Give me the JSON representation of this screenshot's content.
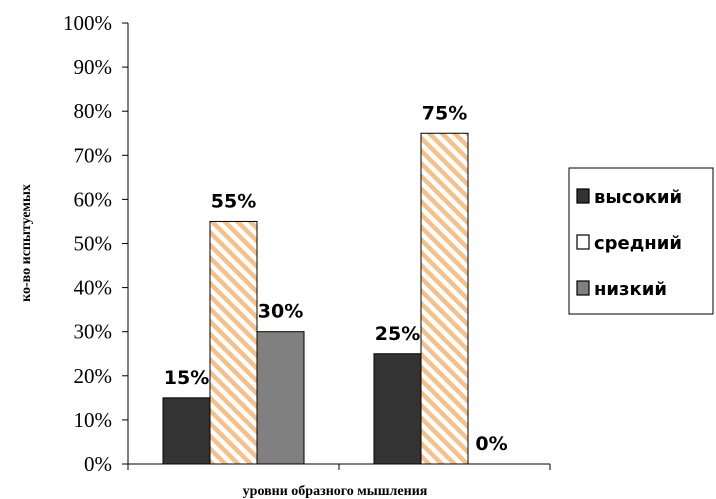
{
  "chart_data": {
    "type": "bar",
    "title": "",
    "xlabel": "уровни образного мышления",
    "ylabel": "ко-во испытуемых",
    "ylim": [
      0,
      100
    ],
    "y_ticks": [
      "0%",
      "10%",
      "20%",
      "30%",
      "40%",
      "50%",
      "60%",
      "70%",
      "80%",
      "90%",
      "100%"
    ],
    "categories": [
      "",
      ""
    ],
    "series": [
      {
        "name": "высокий",
        "values": [
          15,
          25
        ],
        "labels": [
          "15%",
          "25%"
        ],
        "color": "#333333",
        "pattern": "solid"
      },
      {
        "name": "средний",
        "values": [
          55,
          75
        ],
        "labels": [
          "55%",
          "75%"
        ],
        "color": "#f5c08a",
        "pattern": "diagonal-stripes"
      },
      {
        "name": "низкий",
        "values": [
          30,
          0
        ],
        "labels": [
          "30%",
          "0%"
        ],
        "color": "#808080",
        "pattern": "solid"
      }
    ],
    "grid": false,
    "legend_position": "right"
  }
}
